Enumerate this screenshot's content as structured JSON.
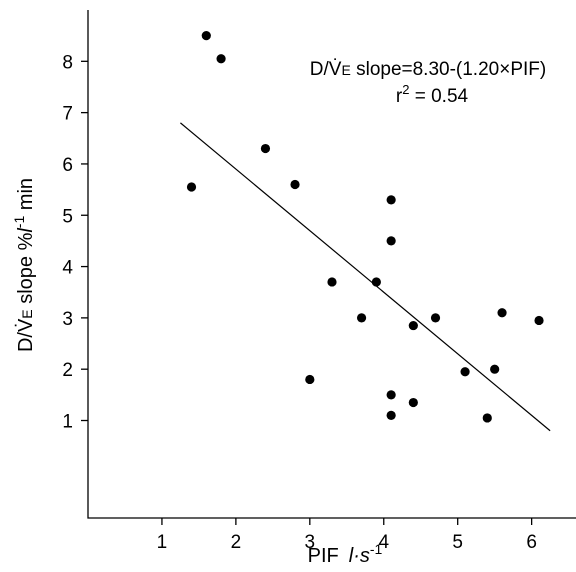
{
  "chart_data": {
    "type": "scatter",
    "xlabel": "PIF  l·s-1",
    "xlabel_parts": {
      "main": "PIF",
      "unit": "l·s",
      "exp": "-1"
    },
    "ylabel": "D/V̇E slope  %l-1 min",
    "ylabel_parts": {
      "pre": "D/",
      "vdot": "V̇",
      "sub": "E",
      "mid": " slope  %",
      "unit": "l",
      "exp": "-1",
      "post": " min"
    },
    "xlim": [
      0,
      6.6
    ],
    "ylim": [
      -0.9,
      9.0
    ],
    "xticks": [
      1,
      2,
      3,
      4,
      5,
      6
    ],
    "yticks": [
      1,
      2,
      3,
      4,
      5,
      6,
      7,
      8
    ],
    "grid": false,
    "points": [
      {
        "x": 1.6,
        "y": 8.5
      },
      {
        "x": 1.8,
        "y": 8.05
      },
      {
        "x": 1.4,
        "y": 5.55
      },
      {
        "x": 2.4,
        "y": 6.3
      },
      {
        "x": 2.8,
        "y": 5.6
      },
      {
        "x": 3.0,
        "y": 1.8
      },
      {
        "x": 3.3,
        "y": 3.7
      },
      {
        "x": 3.7,
        "y": 3.0
      },
      {
        "x": 3.9,
        "y": 3.7
      },
      {
        "x": 4.1,
        "y": 5.3
      },
      {
        "x": 4.1,
        "y": 4.5
      },
      {
        "x": 4.1,
        "y": 1.5
      },
      {
        "x": 4.1,
        "y": 1.1
      },
      {
        "x": 4.4,
        "y": 2.85
      },
      {
        "x": 4.4,
        "y": 1.35
      },
      {
        "x": 4.7,
        "y": 3.0
      },
      {
        "x": 5.1,
        "y": 1.95
      },
      {
        "x": 5.4,
        "y": 1.05
      },
      {
        "x": 5.5,
        "y": 2.0
      },
      {
        "x": 5.6,
        "y": 3.1
      },
      {
        "x": 6.1,
        "y": 2.95
      }
    ],
    "fit_line": {
      "x": [
        1.25,
        6.25
      ],
      "y": [
        6.8,
        0.8
      ]
    },
    "annotation": {
      "equation": "D/V̇E slope=8.30-(1.20×PIF)",
      "equation_parts": {
        "pre": "D/",
        "vdot": "V̇",
        "sub": "E",
        "post": " slope=8.30-(1.20×PIF)"
      },
      "r2": "r2 = 0.54",
      "r2_parts": {
        "r": "r",
        "exp": "2",
        "post": " = 0.54"
      }
    }
  }
}
